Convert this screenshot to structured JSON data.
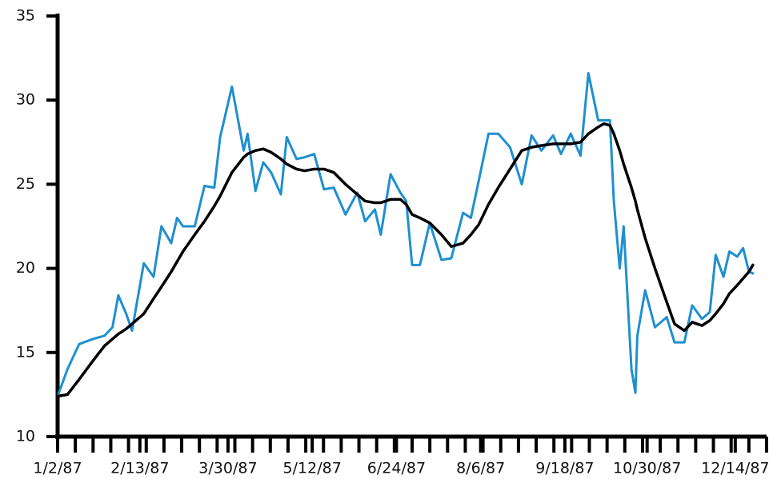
{
  "chart_data": {
    "type": "line",
    "x": [
      "1/2/87",
      "1/7/87",
      "1/13/87",
      "1/20/87",
      "1/26/87",
      "1/30/87",
      "2/2/87",
      "2/6/87",
      "2/9/87",
      "2/15/87",
      "2/20/87",
      "2/24/87",
      "3/1/87",
      "3/4/87",
      "3/7/87",
      "3/13/87",
      "3/18/87",
      "3/23/87",
      "3/26/87",
      "4/1/87",
      "4/7/87",
      "4/9/87",
      "4/13/87",
      "4/17/87",
      "4/21/87",
      "4/26/87",
      "4/29/87",
      "5/4/87",
      "5/8/87",
      "5/13/87",
      "5/18/87",
      "5/23/87",
      "5/29/87",
      "6/4/87",
      "6/8/87",
      "6/13/87",
      "6/16/87",
      "6/21/87",
      "6/26/87",
      "6/29/87",
      "7/2/87",
      "7/6/87",
      "7/11/87",
      "7/17/87",
      "7/22/87",
      "7/28/87",
      "8/1/87",
      "8/5/87",
      "8/10/87",
      "8/15/87",
      "8/21/87",
      "8/27/87",
      "9/1/87",
      "9/6/87",
      "9/12/87",
      "9/16/87",
      "9/21/87",
      "9/26/87",
      "9/30/87",
      "10/5/87",
      "10/8/87",
      "10/11/87",
      "10/13/87",
      "10/16/87",
      "10/18/87",
      "10/22/87",
      "10/24/87",
      "10/25/87",
      "10/29/87",
      "11/3/87",
      "11/9/87",
      "11/13/87",
      "11/18/87",
      "11/22/87",
      "11/27/87",
      "12/1/87",
      "12/4/87",
      "12/8/87",
      "12/11/87",
      "12/15/87",
      "12/18/87",
      "12/21/87",
      "12/23/87"
    ],
    "series": [
      {
        "color": "#1f8fd0",
        "width": 3,
        "values": [
          12.4,
          14,
          15.5,
          15.8,
          16.0,
          16.5,
          18.4,
          17.3,
          16.3,
          20.3,
          19.5,
          22.5,
          21.5,
          23.0,
          22.5,
          22.5,
          24.9,
          24.8,
          27.8,
          30.8,
          27.0,
          28.0,
          24.6,
          26.3,
          25.7,
          24.4,
          27.8,
          26.5,
          26.6,
          26.8,
          24.7,
          24.8,
          23.2,
          24.5,
          22.8,
          23.5,
          22.0,
          25.6,
          24.5,
          24.0,
          20.2,
          20.2,
          22.7,
          20.5,
          20.6,
          23.3,
          23.0,
          25.2,
          28.0,
          28.0,
          27.2,
          25.0,
          27.9,
          27.0,
          27.9,
          26.8,
          28.0,
          26.7,
          31.6,
          28.8,
          28.8,
          28.8,
          24.0,
          20.0,
          22.5,
          14.0,
          12.6,
          16.0,
          18.7,
          16.5,
          17.1,
          15.6,
          15.6,
          17.8,
          17.0,
          17.4,
          20.8,
          19.5,
          21.0,
          20.7,
          21.2,
          19.8,
          19.7
        ]
      },
      {
        "color": "#000000",
        "width": 3.5,
        "values": [
          12.4,
          12.5,
          13.4,
          14.5,
          15.4,
          15.8,
          16.1,
          16.4,
          16.7,
          17.3,
          18.2,
          18.9,
          19.8,
          20.4,
          21.0,
          22.0,
          22.8,
          23.7,
          24.3,
          25.7,
          26.6,
          26.8,
          27.0,
          27.1,
          26.9,
          26.5,
          26.2,
          25.9,
          25.8,
          25.9,
          25.9,
          25.7,
          25.0,
          24.4,
          24.0,
          23.9,
          23.9,
          24.1,
          24.1,
          23.8,
          23.2,
          23.0,
          22.7,
          22.0,
          21.3,
          21.5,
          22.0,
          22.6,
          23.8,
          24.8,
          25.9,
          27.0,
          27.2,
          27.3,
          27.4,
          27.4,
          27.4,
          27.5,
          28.0,
          28.4,
          28.6,
          28.5,
          28.0,
          27.0,
          26.2,
          24.8,
          24.0,
          23.5,
          21.8,
          20.0,
          18.0,
          16.7,
          16.3,
          16.8,
          16.6,
          16.9,
          17.3,
          17.9,
          18.5,
          19.0,
          19.4,
          19.8,
          20.2
        ]
      }
    ],
    "xlim": [
      "1/2/87",
      "12/30/87"
    ],
    "xticks": [
      "1/2/87",
      "2/13/87",
      "3/30/87",
      "5/12/87",
      "6/24/87",
      "8/6/87",
      "9/18/87",
      "10/30/87",
      "12/14/87"
    ],
    "ylim": [
      10,
      35
    ],
    "yticks": [
      10,
      15,
      20,
      25,
      30,
      35
    ]
  }
}
